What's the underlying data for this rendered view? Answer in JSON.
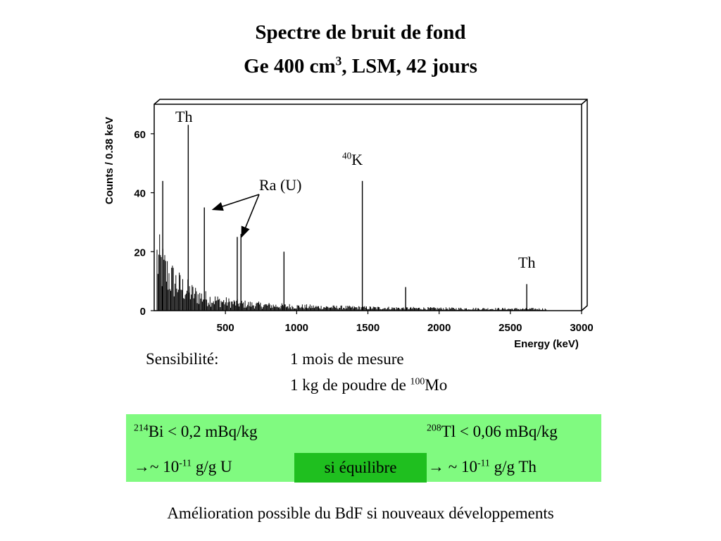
{
  "title": {
    "line1": "Spectre de bruit de fond",
    "line2_pre": "Ge 400 cm",
    "line2_sup": "3",
    "line2_post": ", LSM, 42 jours"
  },
  "chart_data": {
    "type": "line",
    "title": "",
    "xlabel": "Energy (keV)",
    "ylabel": "Counts / 0.38 keV",
    "xlim": [
      0,
      3000
    ],
    "ylim": [
      0,
      70
    ],
    "x_ticks": [
      500,
      1000,
      1500,
      2000,
      2500,
      3000
    ],
    "y_ticks": [
      0,
      20,
      40,
      60
    ],
    "peaks": [
      {
        "energy": 60,
        "counts": 44
      },
      {
        "energy": 239,
        "counts": 63
      },
      {
        "energy": 352,
        "counts": 35
      },
      {
        "energy": 583,
        "counts": 25
      },
      {
        "energy": 609,
        "counts": 26
      },
      {
        "energy": 911,
        "counts": 20
      },
      {
        "energy": 1461,
        "counts": 44
      },
      {
        "energy": 1765,
        "counts": 8
      },
      {
        "energy": 2615,
        "counts": 9
      }
    ],
    "annotations": [
      {
        "label": "Th",
        "energy": 239
      },
      {
        "label_sup": "40",
        "label": "K",
        "energy": 1461
      },
      {
        "label": "Ra (U)",
        "energy": 352
      },
      {
        "label": "Th",
        "energy": 2615
      }
    ],
    "grid": false,
    "legend": "none"
  },
  "sensitivity": {
    "label": "Sensibilité:",
    "line1": "1 mois de mesure",
    "line2_pre": "1 kg de poudre de ",
    "line2_sup": "100",
    "line2_post": "Mo"
  },
  "results": {
    "bi_sup": "214",
    "bi_text": "Bi < 0,2 mBq/kg",
    "tl_sup": "208",
    "tl_text": "Tl < 0,06 mBq/kg",
    "u_arrow": "→",
    "u_pre": "~ 10",
    "u_sup": "-11",
    "u_post": " g/g U",
    "th_arrow": "→",
    "th_pre": " ~ 10",
    "th_sup": "-11",
    "th_post": " g/g Th",
    "equilibrium": "si équilibre",
    "bg_color": "#80fa80",
    "eq_color": "#1fbf1f"
  },
  "footer": "Amélioration possible du BdF si nouveaux développements"
}
